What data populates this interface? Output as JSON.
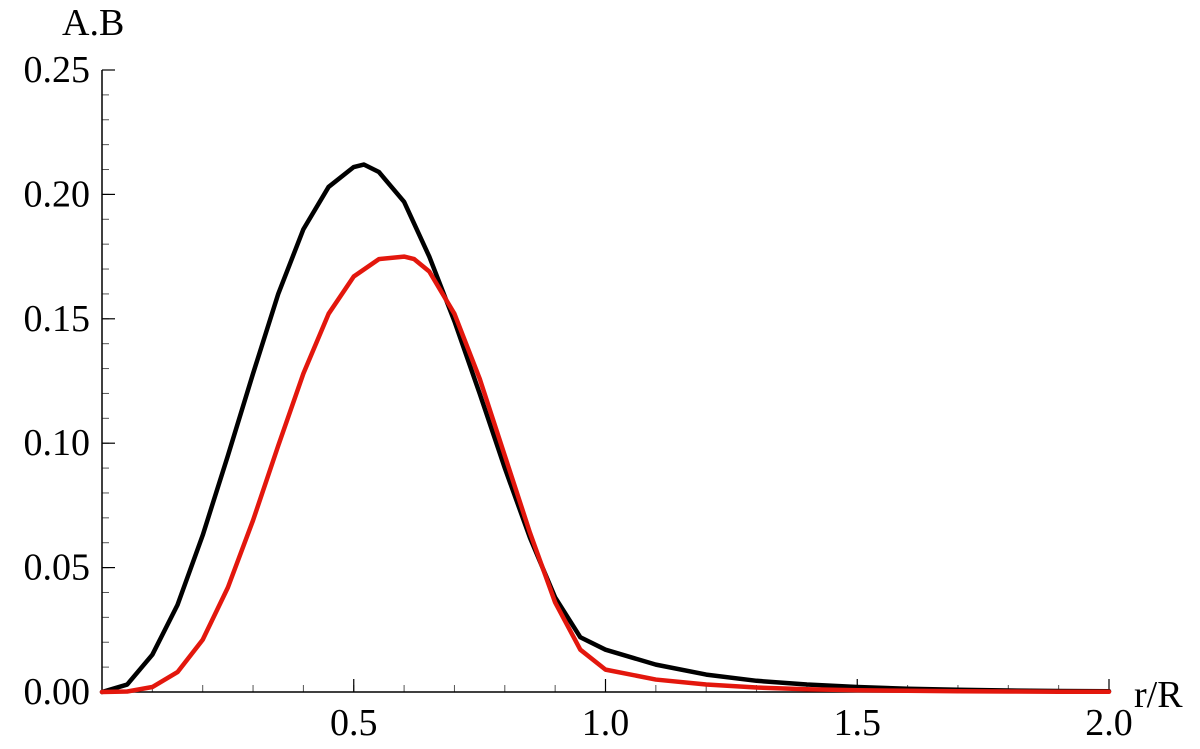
{
  "chart_data": {
    "type": "line",
    "title": "",
    "xlabel": "r/R",
    "ylabel": "A.B",
    "xlim": [
      0,
      2.0
    ],
    "ylim": [
      0,
      0.25
    ],
    "x_ticks": [
      0.5,
      1.0,
      1.5,
      2.0
    ],
    "x_tick_labels": [
      "0.5",
      "1.0",
      "1.5",
      "2.0"
    ],
    "y_ticks": [
      0.0,
      0.05,
      0.1,
      0.15,
      0.2,
      0.25
    ],
    "y_tick_labels": [
      "0.00",
      "0.05",
      "0.10",
      "0.15",
      "0.20",
      "0.25"
    ],
    "x_minor_step": 0.1,
    "y_minor_step": 0.01,
    "grid": false,
    "legend": "none",
    "series": [
      {
        "color": "#000000",
        "x": [
          0.0,
          0.05,
          0.1,
          0.15,
          0.2,
          0.25,
          0.3,
          0.35,
          0.4,
          0.45,
          0.5,
          0.52,
          0.55,
          0.6,
          0.65,
          0.7,
          0.75,
          0.8,
          0.85,
          0.9,
          0.95,
          1.0,
          1.1,
          1.2,
          1.3,
          1.4,
          1.5,
          1.6,
          1.7,
          1.8,
          1.9,
          2.0
        ],
        "values": [
          0.0,
          0.003,
          0.015,
          0.035,
          0.063,
          0.095,
          0.128,
          0.16,
          0.186,
          0.203,
          0.211,
          0.212,
          0.209,
          0.197,
          0.175,
          0.149,
          0.12,
          0.09,
          0.062,
          0.038,
          0.022,
          0.017,
          0.011,
          0.007,
          0.0045,
          0.003,
          0.002,
          0.0013,
          0.0009,
          0.0006,
          0.0004,
          0.0003
        ]
      },
      {
        "color": "#e3170d",
        "x": [
          0.0,
          0.05,
          0.1,
          0.15,
          0.2,
          0.25,
          0.3,
          0.35,
          0.4,
          0.45,
          0.5,
          0.55,
          0.6,
          0.62,
          0.65,
          0.7,
          0.75,
          0.8,
          0.85,
          0.9,
          0.95,
          1.0,
          1.1,
          1.2,
          1.3,
          1.4,
          1.5,
          1.6,
          1.7,
          1.8,
          1.9,
          2.0
        ],
        "values": [
          0.0,
          0.0002,
          0.002,
          0.008,
          0.021,
          0.042,
          0.069,
          0.099,
          0.128,
          0.152,
          0.167,
          0.174,
          0.175,
          0.174,
          0.169,
          0.152,
          0.126,
          0.095,
          0.064,
          0.036,
          0.017,
          0.009,
          0.005,
          0.003,
          0.0018,
          0.0011,
          0.0007,
          0.0005,
          0.0003,
          0.0002,
          0.0001,
          0.0001
        ]
      }
    ]
  }
}
